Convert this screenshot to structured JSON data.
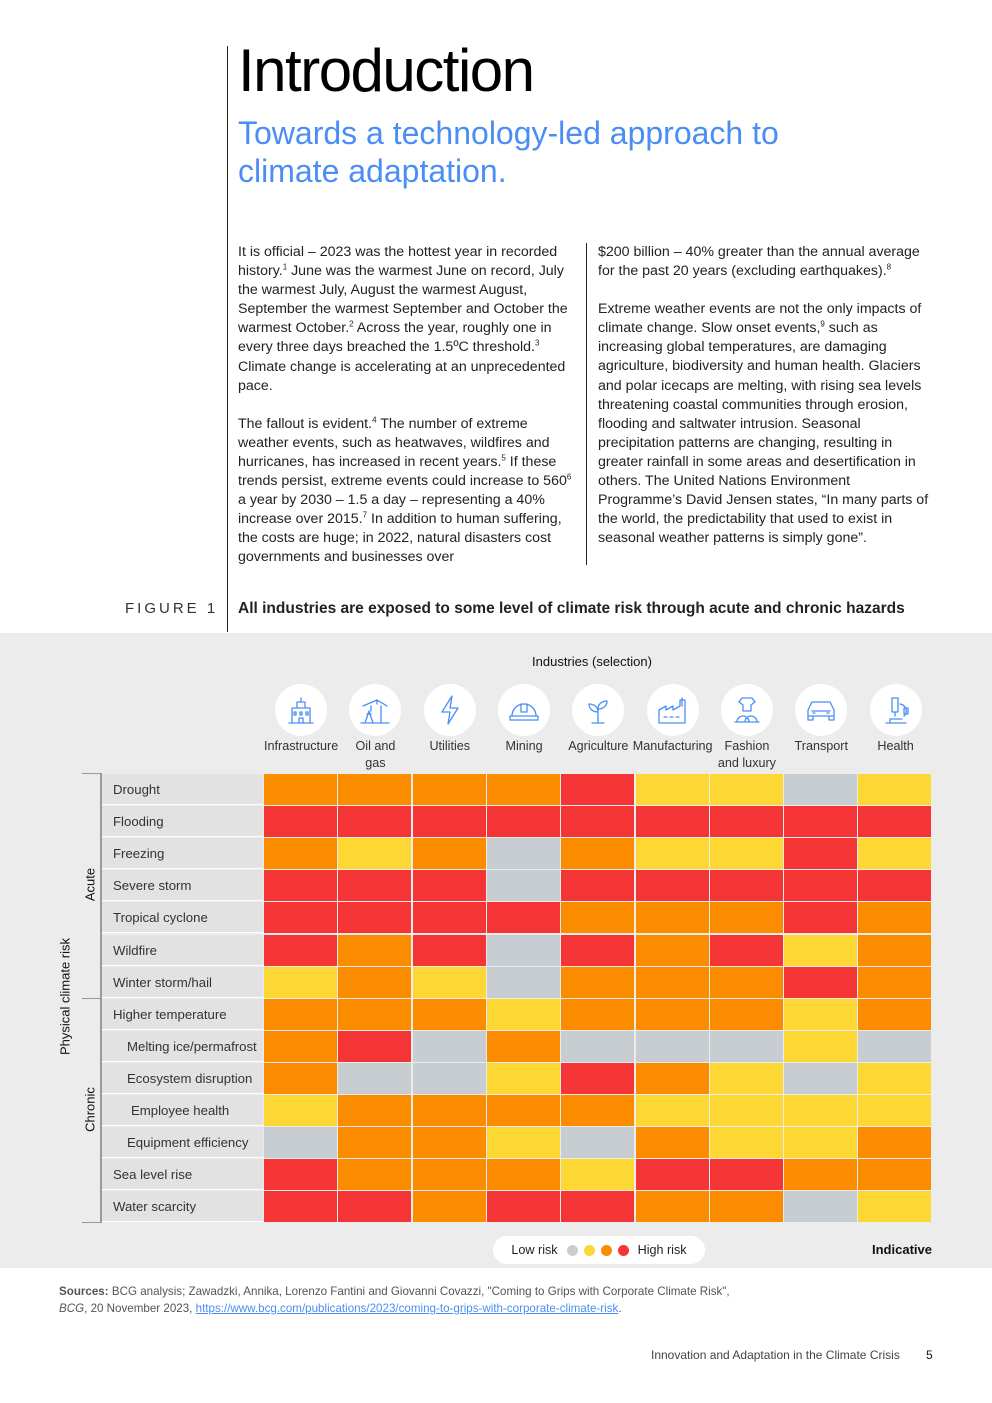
{
  "heading": {
    "title": "Introduction",
    "subtitle": "Towards a technology-led approach to climate adaptation."
  },
  "body": {
    "col1_p1": [
      {
        "t": "It is official – 2023 was the hottest year in recorded history."
      },
      {
        "s": "1"
      },
      {
        "t": " June was the warmest June on record, July the warmest July, August the warmest August, September the warmest September and October the warmest October."
      },
      {
        "s": "2"
      },
      {
        "t": " Across the year, roughly one in every three days breached the 1.5ºC threshold."
      },
      {
        "s": "3"
      },
      {
        "t": " Climate change is accelerating at an unprecedented pace."
      }
    ],
    "col1_p2": [
      {
        "t": "The fallout is evident."
      },
      {
        "s": "4"
      },
      {
        "t": " The number of extreme weather events, such as heatwaves, wildfires and hurricanes, has increased in recent years."
      },
      {
        "s": "5"
      },
      {
        "t": " If these trends persist, extreme events could increase to 560"
      },
      {
        "s": "6"
      },
      {
        "t": " a year by 2030 – 1.5 a day – representing a 40% increase over 2015."
      },
      {
        "s": "7"
      },
      {
        "t": " In addition to human suffering, the costs are huge; in 2022, natural disasters cost governments and businesses over"
      }
    ],
    "col2_p1": [
      {
        "t": "$200 billion – 40% greater than the annual average for the past 20 years (excluding earthquakes)."
      },
      {
        "s": "8"
      }
    ],
    "col2_p2": [
      {
        "t": "Extreme weather events are not the only impacts of climate change. Slow onset events,"
      },
      {
        "s": "9"
      },
      {
        "t": " such as increasing global temperatures, are damaging agriculture, biodiversity and human health. Glaciers and polar icecaps are melting, with rising sea levels threatening coastal communities through erosion, flooding and saltwater intrusion. Seasonal precipitation patterns are changing, resulting in greater rainfall in some areas and desertification in others. The United Nations Environment Programme’s David Jensen states, “In many parts of the world, the predictability that used to exist in seasonal weather patterns is simply gone”."
      }
    ]
  },
  "figure": {
    "label": "FIGURE 1",
    "title": "All industries are exposed to some level of climate risk through acute and chronic hazards",
    "industries_title": "Industries (selection)",
    "industries": [
      {
        "name": "Infrastructure",
        "icon": "building-icon"
      },
      {
        "name": "Oil and gas",
        "icon": "oil-pump-icon"
      },
      {
        "name": "Utilities",
        "icon": "lightning-icon"
      },
      {
        "name": "Mining",
        "icon": "hard-hat-icon"
      },
      {
        "name": "Agriculture",
        "icon": "sprout-icon"
      },
      {
        "name": "Manufacturing",
        "icon": "factory-icon"
      },
      {
        "name": "Fashion and luxury",
        "icon": "fashion-icon"
      },
      {
        "name": "Transport",
        "icon": "car-icon"
      },
      {
        "name": "Health",
        "icon": "microscope-icon"
      }
    ],
    "y_axis_label": "Physical climate risk",
    "group_acute": "Acute",
    "group_chronic": "Chronic",
    "legend_low": "Low risk",
    "legend_high": "High risk",
    "indicative": "Indicative",
    "colors": {
      "low": "#c8cdd2",
      "medium_low": "#fdd835",
      "medium_high": "#fb8c00",
      "high": "#f53535"
    }
  },
  "chart_data": {
    "type": "heatmap",
    "title": "All industries are exposed to some level of climate risk through acute and chronic hazards",
    "xlabel": "Industries (selection)",
    "ylabel": "Physical climate risk",
    "columns": [
      "Infrastructure",
      "Oil and gas",
      "Utilities",
      "Mining",
      "Agriculture",
      "Manufacturing",
      "Fashion and luxury",
      "Transport",
      "Health"
    ],
    "scale": [
      "Low risk",
      "",
      "",
      "High risk"
    ],
    "rows": [
      {
        "label": "Drought",
        "group": "Acute",
        "level": 0,
        "values": [
          3,
          3,
          3,
          3,
          4,
          2,
          2,
          1,
          2
        ]
      },
      {
        "label": "Flooding",
        "group": "Acute",
        "level": 0,
        "values": [
          4,
          4,
          4,
          4,
          4,
          4,
          4,
          4,
          4
        ]
      },
      {
        "label": "Freezing",
        "group": "Acute",
        "level": 0,
        "values": [
          3,
          2,
          3,
          1,
          3,
          2,
          2,
          4,
          2
        ]
      },
      {
        "label": "Severe storm",
        "group": "Acute",
        "level": 0,
        "values": [
          4,
          4,
          4,
          1,
          4,
          4,
          4,
          4,
          4
        ]
      },
      {
        "label": "Tropical cyclone",
        "group": "Acute",
        "level": 0,
        "values": [
          4,
          4,
          4,
          4,
          3,
          3,
          3,
          4,
          3
        ]
      },
      {
        "label": "Wildfire",
        "group": "Acute",
        "level": 0,
        "values": [
          4,
          3,
          4,
          1,
          4,
          3,
          4,
          2,
          3
        ]
      },
      {
        "label": "Winter storm/hail",
        "group": "Acute",
        "level": 0,
        "values": [
          2,
          3,
          2,
          1,
          3,
          3,
          3,
          4,
          3
        ]
      },
      {
        "label": "Higher temperature",
        "group": "Chronic",
        "level": 0,
        "values": [
          3,
          3,
          3,
          2,
          3,
          3,
          3,
          2,
          3
        ]
      },
      {
        "label": "Melting ice/permafrost",
        "group": "Chronic",
        "level": 1,
        "values": [
          3,
          4,
          1,
          3,
          1,
          1,
          1,
          2,
          1
        ]
      },
      {
        "label": "Ecosystem disruption",
        "group": "Chronic",
        "level": 1,
        "values": [
          3,
          1,
          1,
          2,
          4,
          3,
          2,
          1,
          2
        ]
      },
      {
        "label": "Employee health",
        "group": "Chronic",
        "level": 2,
        "values": [
          2,
          3,
          3,
          3,
          3,
          2,
          2,
          2,
          2
        ]
      },
      {
        "label": "Equipment efficiency",
        "group": "Chronic",
        "level": 1,
        "values": [
          1,
          3,
          3,
          2,
          1,
          3,
          2,
          2,
          3
        ]
      },
      {
        "label": "Sea level rise",
        "group": "Chronic",
        "level": 0,
        "values": [
          4,
          3,
          3,
          3,
          2,
          4,
          4,
          3,
          3
        ]
      },
      {
        "label": "Water scarcity",
        "group": "Chronic",
        "level": 0,
        "values": [
          4,
          4,
          3,
          4,
          4,
          3,
          3,
          1,
          2
        ]
      }
    ]
  },
  "sources": {
    "label": "Sources:",
    "text": " BCG analysis; Zawadzki, Annika, Lorenzo Fantini and Giovanni Covazzi, \"Coming to Grips with Corporate Climate Risk\",",
    "pub": "BCG",
    "date": ", 20 November 2023, ",
    "link": "https://www.bcg.com/publications/2023/coming-to-grips-with-corporate-climate-risk",
    "end": "."
  },
  "footer": {
    "text": "Innovation and Adaptation in the Climate Crisis",
    "page": "5"
  }
}
